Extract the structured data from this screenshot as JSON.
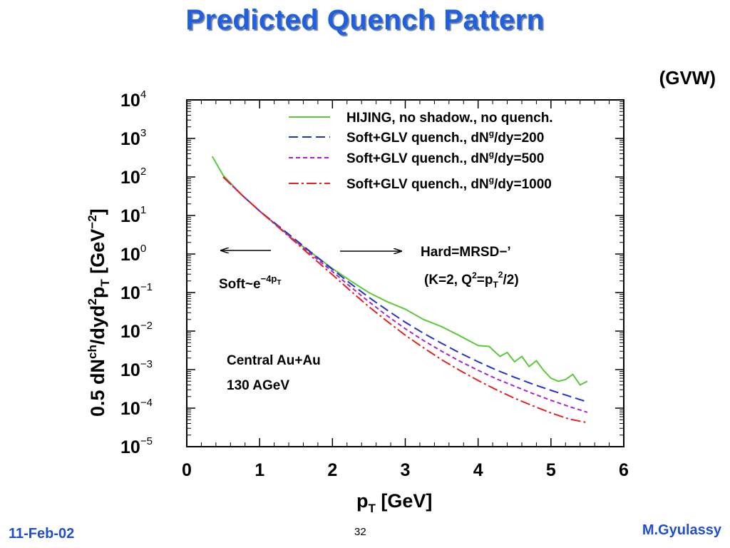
{
  "slide": {
    "title": "Predicted Quench Pattern",
    "source_tag": "(GVW)",
    "date": "11-Feb-02",
    "page_number": "32",
    "author": "M.Gyulassy"
  },
  "chart_data": {
    "type": "line",
    "title": "",
    "xlabel": {
      "main": "p",
      "sub": "T",
      "rest": " [GeV]"
    },
    "ylabel": {
      "p1": "0.5 dN",
      "sup1": "ch",
      "p2": "/dyd",
      "sup2": "2",
      "p3": "p",
      "sub3": "T",
      "p4": " [GeV",
      "sup4": "−2",
      "p5": "]"
    },
    "xlim": [
      0,
      6
    ],
    "ylim_log10": [
      -5,
      4
    ],
    "y_scale": "log",
    "x_ticks": [
      0,
      1,
      2,
      3,
      4,
      5,
      6
    ],
    "y_ticks": [
      {
        "base": "10",
        "exp": "4",
        "log": 4
      },
      {
        "base": "10",
        "exp": "3",
        "log": 3
      },
      {
        "base": "10",
        "exp": "2",
        "log": 2
      },
      {
        "base": "10",
        "exp": "1",
        "log": 1
      },
      {
        "base": "10",
        "exp": "0",
        "log": 0
      },
      {
        "base": "10",
        "exp": "−1",
        "log": -1
      },
      {
        "base": "10",
        "exp": "−2",
        "log": -2
      },
      {
        "base": "10",
        "exp": "−3",
        "log": -3
      },
      {
        "base": "10",
        "exp": "−4",
        "log": -4
      },
      {
        "base": "10",
        "exp": "−5",
        "log": -5
      }
    ],
    "grid": false,
    "legend_position": "top-right",
    "series": [
      {
        "name": "HIJING, no shadow., no quench.",
        "color": "#5cc83a",
        "dash": "solid",
        "x": [
          0.35,
          0.5,
          0.75,
          1.0,
          1.25,
          1.5,
          1.75,
          2.0,
          2.25,
          2.5,
          2.75,
          3.0,
          3.25,
          3.5,
          3.75,
          4.0,
          4.15,
          4.3,
          4.4,
          4.5,
          4.6,
          4.7,
          4.8,
          4.9,
          5.0,
          5.1,
          5.2,
          5.3,
          5.4,
          5.5
        ],
        "y": [
          340,
          110,
          35,
          13,
          5.2,
          2.1,
          0.95,
          0.42,
          0.2,
          0.1,
          0.058,
          0.037,
          0.02,
          0.013,
          0.0075,
          0.0042,
          0.004,
          0.0022,
          0.0028,
          0.0016,
          0.0022,
          0.0012,
          0.0017,
          0.00095,
          0.0006,
          0.0005,
          0.00055,
          0.00075,
          0.0004,
          0.0005
        ]
      },
      {
        "name": "Soft+GLV quench., dN^g/dy=200",
        "label_main": "Soft+GLV quench., dN",
        "label_sup": "g",
        "label_rest": "/dy=200",
        "color": "#2233cc",
        "dash": "long",
        "x": [
          0.5,
          0.75,
          1.0,
          1.25,
          1.5,
          1.75,
          2.0,
          2.25,
          2.5,
          2.75,
          3.0,
          3.25,
          3.5,
          3.75,
          4.0,
          4.25,
          4.5,
          4.75,
          5.0,
          5.25,
          5.5
        ],
        "y": [
          100,
          35,
          13,
          5.5,
          2.3,
          0.95,
          0.4,
          0.17,
          0.075,
          0.035,
          0.017,
          0.0088,
          0.0048,
          0.0027,
          0.0016,
          0.00098,
          0.00063,
          0.00042,
          0.00029,
          0.000205,
          0.000145
        ]
      },
      {
        "name": "Soft+GLV quench., dN^g/dy=500",
        "label_main": "Soft+GLV quench., dN",
        "label_sup": "g",
        "label_rest": "/dy=500",
        "color": "#aa22cc",
        "dash": "short",
        "x": [
          0.5,
          0.75,
          1.0,
          1.25,
          1.5,
          1.75,
          2.0,
          2.25,
          2.5,
          2.75,
          3.0,
          3.25,
          3.5,
          3.75,
          4.0,
          4.25,
          4.5,
          4.75,
          5.0,
          5.25,
          5.5
        ],
        "y": [
          100,
          35,
          13,
          5.3,
          2.1,
          0.85,
          0.35,
          0.14,
          0.058,
          0.025,
          0.0115,
          0.0057,
          0.003,
          0.00165,
          0.00096,
          0.00058,
          0.00037,
          0.00024,
          0.00016,
          0.00011,
          7.8e-05
        ]
      },
      {
        "name": "Soft+GLV quench., dN^g/dy=1000",
        "label_main": "Soft+GLV quench., dN",
        "label_sup": "g",
        "label_rest": "/dy=1000",
        "color": "#e82020",
        "dash": "dashdot",
        "x": [
          0.5,
          0.75,
          1.0,
          1.25,
          1.5,
          1.75,
          2.0,
          2.25,
          2.5,
          2.75,
          3.0,
          3.25,
          3.5,
          3.75,
          4.0,
          4.25,
          4.5,
          4.75,
          5.0,
          5.25,
          5.5
        ],
        "y": [
          100,
          35,
          13,
          5.1,
          1.95,
          0.75,
          0.29,
          0.11,
          0.043,
          0.018,
          0.0078,
          0.0037,
          0.0018,
          0.00095,
          0.00052,
          0.0003,
          0.00018,
          0.000115,
          7.5e-05,
          5.2e-05,
          4.2e-05
        ]
      }
    ],
    "annotations": {
      "hard_label": "Hard=MRSD−’",
      "k_label": {
        "p1": "(K=2, Q",
        "sup1": "2",
        "p2": "=p",
        "sub2": "T",
        "sup2": "2",
        "p3": "/2)"
      },
      "soft_label": {
        "p1": "Soft~e",
        "sup1": "−4p",
        "subsup": "T"
      },
      "system_line1": "Central Au+Au",
      "system_line2": "130 AGeV"
    }
  }
}
